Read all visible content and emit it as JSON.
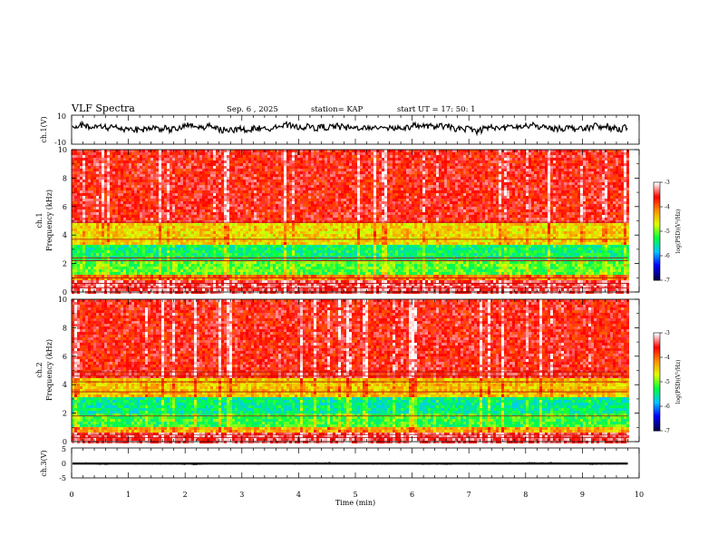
{
  "header": {
    "title": "VLF Spectra",
    "date": "Sep. 6 , 2025",
    "station": "station= KAP",
    "start": "start UT = 17: 50: 1"
  },
  "colors": {
    "background": "#ffffff",
    "axis": "#000000",
    "trace": "#000000",
    "colormap": [
      "#000050",
      "#0000ff",
      "#00c8ff",
      "#00ff40",
      "#e0ff00",
      "#ff9000",
      "#ff0000",
      "#ffffff"
    ]
  },
  "chart_data": [
    {
      "type": "line",
      "name": "ch1-voltage",
      "ylabel": "ch.1(V)",
      "ylim": [
        -10,
        10
      ],
      "yticks": [
        "10",
        "-10"
      ],
      "xlim": [
        0,
        10
      ],
      "x_coverage_min": 9.8,
      "mean": 1.5,
      "amplitude": 4
    },
    {
      "type": "heatmap",
      "name": "ch1-spectrogram",
      "title_label": "ch.1",
      "ylabel": "Frequency (kHz)",
      "ylim": [
        0,
        10
      ],
      "yticks": [
        "0",
        "2",
        "4",
        "6",
        "8",
        "10"
      ],
      "xlim": [
        0,
        9.8
      ],
      "colorbar": {
        "label": "log(PSD)(V²/Hz)",
        "range": [
          -7,
          -3
        ],
        "ticks": [
          "-3",
          "-4",
          "-5",
          "-6",
          "-7"
        ]
      },
      "bands": [
        {
          "from": 0,
          "to": 0.9,
          "level": -3.4
        },
        {
          "from": 0.9,
          "to": 1.4,
          "level": -4.1
        },
        {
          "from": 1.4,
          "to": 2.2,
          "level": -5.1
        },
        {
          "from": 2.2,
          "to": 3.5,
          "level": -5.4
        },
        {
          "from": 3.5,
          "to": 4.9,
          "level": -4.5
        },
        {
          "from": 4.9,
          "to": 10,
          "level": -3.6
        }
      ],
      "lines_khz": [
        0.3,
        0.6,
        1.0,
        2.2,
        2.4,
        3.7,
        4.9
      ]
    },
    {
      "type": "heatmap",
      "name": "ch2-spectrogram",
      "title_label": "ch.2",
      "ylabel": "Frequency (kHz)",
      "ylim": [
        0,
        10
      ],
      "yticks": [
        "0",
        "2",
        "4",
        "6",
        "8",
        "10"
      ],
      "xlim": [
        0,
        9.8
      ],
      "colorbar": {
        "label": "log(PSD)(V²/Hz)",
        "range": [
          -7,
          -3
        ],
        "ticks": [
          "-3",
          "-4",
          "-5",
          "-6",
          "-7"
        ]
      },
      "bands": [
        {
          "from": 0,
          "to": 0.8,
          "level": -3.4
        },
        {
          "from": 0.8,
          "to": 1.2,
          "level": -4.3
        },
        {
          "from": 1.2,
          "to": 2.0,
          "level": -5.2
        },
        {
          "from": 2.0,
          "to": 3.2,
          "level": -5.5
        },
        {
          "from": 3.2,
          "to": 4.6,
          "level": -4.4
        },
        {
          "from": 4.6,
          "to": 10,
          "level": -3.6
        }
      ],
      "lines_khz": [
        0.3,
        0.5,
        1.8,
        3.5,
        4.2,
        4.6,
        4.9
      ]
    },
    {
      "type": "line",
      "name": "ch3-voltage",
      "ylabel": "ch.3(V)",
      "ylim": [
        -5,
        5
      ],
      "yticks": [
        "5",
        "0",
        "-5"
      ],
      "xlim": [
        0,
        10
      ],
      "x_coverage_min": 9.8,
      "mean": -0.2,
      "amplitude": 0.35
    }
  ],
  "xaxis": {
    "label": "Time (min)",
    "ticks": [
      "0",
      "1",
      "2",
      "3",
      "4",
      "5",
      "6",
      "7",
      "8",
      "9",
      "10"
    ],
    "range": [
      0,
      10
    ]
  }
}
